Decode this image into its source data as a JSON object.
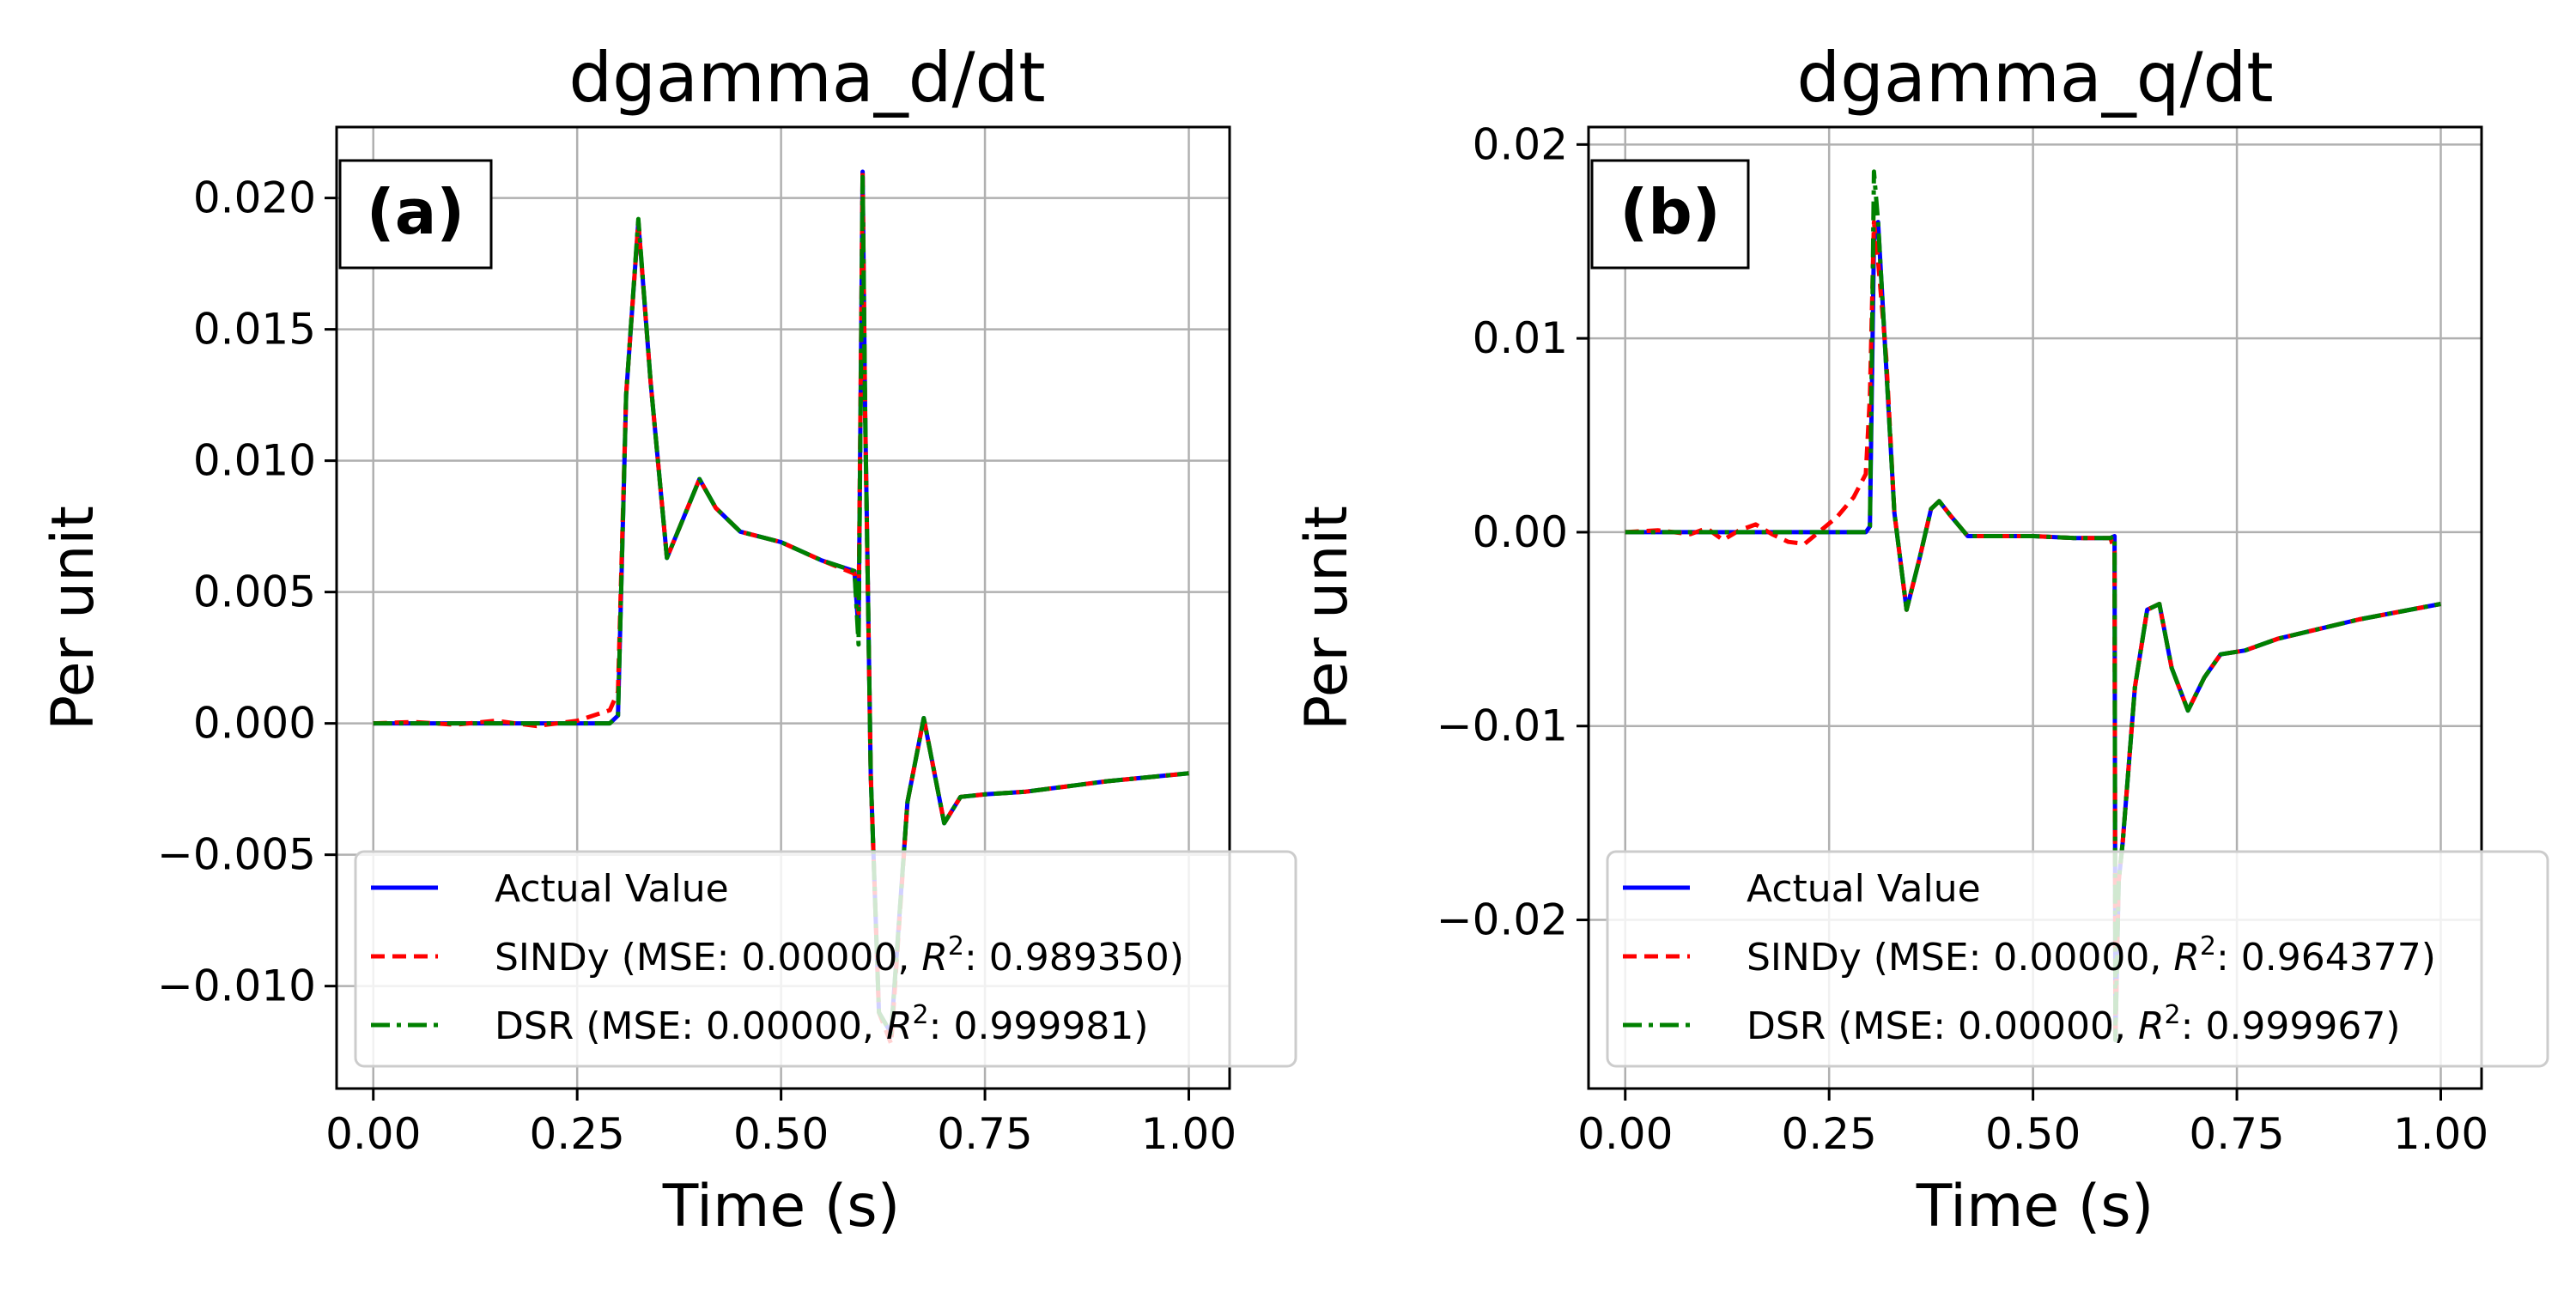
{
  "colors": {
    "actual": "#0000ff",
    "sindy": "#ff0000",
    "dsr": "#008000",
    "grid": "#b0b0b0",
    "axes": "#000000",
    "legend_border": "#cccccc"
  },
  "chart_data": [
    {
      "type": "line",
      "title": "dgamma_d/dt",
      "xlabel": "Time (s)",
      "ylabel": "Per unit",
      "panel_label": "(a)",
      "xlim": [
        -0.045,
        1.05
      ],
      "ylim": [
        -0.0139,
        0.0227
      ],
      "xticks": [
        0.0,
        0.25,
        0.5,
        0.75,
        1.0
      ],
      "xtick_labels": [
        "0.00",
        "0.25",
        "0.50",
        "0.75",
        "1.00"
      ],
      "yticks": [
        -0.01,
        -0.005,
        0.0,
        0.005,
        0.01,
        0.015,
        0.02
      ],
      "ytick_labels": [
        "−0.010",
        "−0.005",
        "0.000",
        "0.005",
        "0.010",
        "0.015",
        "0.020"
      ],
      "grid": true,
      "legend_position": "lower-right",
      "legend": [
        {
          "key": "actual",
          "label": "Actual Value",
          "style": "solid"
        },
        {
          "key": "sindy",
          "prefix": "SINDy (MSE: 0.00000, ",
          "var": "R",
          "sup": "2",
          "suffix": ": 0.989350)",
          "style": "dashed"
        },
        {
          "key": "dsr",
          "prefix": "DSR (MSE: 0.00000, ",
          "var": "R",
          "sup": "2",
          "suffix": ": 0.999981)",
          "style": "dashdot"
        }
      ],
      "series": [
        {
          "name": "Actual Value",
          "key": "actual",
          "x": [
            0,
            0.29,
            0.3,
            0.31,
            0.325,
            0.34,
            0.36,
            0.38,
            0.4,
            0.42,
            0.45,
            0.5,
            0.55,
            0.59,
            0.595,
            0.6,
            0.603,
            0.61,
            0.62,
            0.635,
            0.655,
            0.675,
            0.7,
            0.72,
            0.75,
            0.8,
            0.9,
            1.0
          ],
          "y": [
            0,
            0,
            0.0003,
            0.0125,
            0.0191,
            0.013,
            0.0063,
            0.0078,
            0.0093,
            0.0082,
            0.0073,
            0.0069,
            0.0062,
            0.0058,
            0.0035,
            0.021,
            0.012,
            -0.002,
            -0.011,
            -0.0118,
            -0.003,
            0.0002,
            -0.0038,
            -0.0028,
            -0.0027,
            -0.0026,
            -0.0022,
            -0.0019
          ]
        },
        {
          "name": "SINDy",
          "key": "sindy",
          "x": [
            0,
            0.05,
            0.1,
            0.15,
            0.2,
            0.25,
            0.29,
            0.3,
            0.31,
            0.325,
            0.34,
            0.36,
            0.38,
            0.4,
            0.42,
            0.45,
            0.5,
            0.55,
            0.59,
            0.595,
            0.6,
            0.603,
            0.61,
            0.62,
            0.635,
            0.655,
            0.675,
            0.7,
            0.72,
            0.75,
            0.8,
            0.9,
            1.0
          ],
          "y": [
            0,
            5e-05,
            -5e-05,
            0.0001,
            -0.0001,
            0.0001,
            0.0005,
            0.0012,
            0.0125,
            0.0191,
            0.013,
            0.0063,
            0.0078,
            0.0093,
            0.0082,
            0.0073,
            0.0069,
            0.0062,
            0.0057,
            0.0042,
            0.021,
            0.0118,
            -0.002,
            -0.011,
            -0.0122,
            -0.003,
            0.0002,
            -0.0038,
            -0.0028,
            -0.0027,
            -0.0026,
            -0.0022,
            -0.0019
          ]
        },
        {
          "name": "DSR",
          "key": "dsr",
          "x": [
            0,
            0.29,
            0.3,
            0.31,
            0.325,
            0.34,
            0.36,
            0.38,
            0.4,
            0.42,
            0.45,
            0.5,
            0.55,
            0.59,
            0.595,
            0.6,
            0.603,
            0.61,
            0.62,
            0.635,
            0.655,
            0.675,
            0.7,
            0.72,
            0.75,
            0.8,
            0.9,
            1.0
          ],
          "y": [
            0,
            0,
            0.0003,
            0.0125,
            0.0192,
            0.013,
            0.0063,
            0.0078,
            0.0093,
            0.0082,
            0.0073,
            0.0069,
            0.0062,
            0.0058,
            0.003,
            0.0208,
            0.012,
            -0.002,
            -0.011,
            -0.0118,
            -0.003,
            0.0002,
            -0.0038,
            -0.0028,
            -0.0027,
            -0.0026,
            -0.0022,
            -0.0019
          ]
        }
      ]
    },
    {
      "type": "line",
      "title": "dgamma_q/dt",
      "xlabel": "Time (s)",
      "ylabel": "Per unit",
      "panel_label": "(b)",
      "xlim": [
        -0.045,
        1.05
      ],
      "ylim": [
        -0.0287,
        0.0209
      ],
      "xticks": [
        0.0,
        0.25,
        0.5,
        0.75,
        1.0
      ],
      "xtick_labels": [
        "0.00",
        "0.25",
        "0.50",
        "0.75",
        "1.00"
      ],
      "yticks": [
        -0.02,
        -0.01,
        0.0,
        0.01,
        0.02
      ],
      "ytick_labels": [
        "−0.02",
        "−0.01",
        "0.00",
        "0.01",
        "0.02"
      ],
      "grid": true,
      "legend_position": "lower-right",
      "legend": [
        {
          "key": "actual",
          "label": "Actual Value",
          "style": "solid"
        },
        {
          "key": "sindy",
          "prefix": "SINDy (MSE: 0.00000, ",
          "var": "R",
          "sup": "2",
          "suffix": ": 0.964377)",
          "style": "dashed"
        },
        {
          "key": "dsr",
          "prefix": "DSR (MSE: 0.00000, ",
          "var": "R",
          "sup": "2",
          "suffix": ": 0.999967)",
          "style": "dashdot"
        }
      ],
      "series": [
        {
          "name": "Actual Value",
          "key": "actual",
          "x": [
            0,
            0.295,
            0.3,
            0.305,
            0.31,
            0.32,
            0.33,
            0.345,
            0.36,
            0.375,
            0.385,
            0.4,
            0.42,
            0.45,
            0.5,
            0.55,
            0.595,
            0.6,
            0.601,
            0.605,
            0.61,
            0.625,
            0.64,
            0.655,
            0.67,
            0.69,
            0.71,
            0.73,
            0.76,
            0.8,
            0.85,
            0.9,
            0.95,
            1.0
          ],
          "y": [
            0,
            0,
            0.0003,
            0.015,
            0.016,
            0.0085,
            0.001,
            -0.004,
            -0.0015,
            0.0012,
            0.0016,
            0.0008,
            -0.0002,
            -0.0002,
            -0.0002,
            -0.0003,
            -0.0003,
            -0.0002,
            -0.0262,
            -0.018,
            -0.016,
            -0.008,
            -0.004,
            -0.0037,
            -0.007,
            -0.0092,
            -0.0075,
            -0.0063,
            -0.0061,
            -0.0055,
            -0.005,
            -0.0045,
            -0.0041,
            -0.0037
          ]
        },
        {
          "name": "SINDy",
          "key": "sindy",
          "x": [
            0,
            0.04,
            0.08,
            0.1,
            0.12,
            0.14,
            0.16,
            0.18,
            0.2,
            0.22,
            0.24,
            0.26,
            0.28,
            0.295,
            0.3,
            0.305,
            0.31,
            0.32,
            0.33,
            0.345,
            0.36,
            0.375,
            0.385,
            0.4,
            0.42,
            0.45,
            0.5,
            0.55,
            0.595,
            0.6,
            0.601,
            0.605,
            0.61,
            0.625,
            0.64,
            0.655,
            0.67,
            0.69,
            0.71,
            0.73,
            0.76,
            0.8,
            0.85,
            0.9,
            0.95,
            1.0
          ],
          "y": [
            0,
            0.0001,
            -0.0001,
            0.0002,
            -0.0004,
            0.0001,
            0.0004,
            -0.0001,
            -0.0005,
            -0.0006,
            0.0001,
            0.0008,
            0.0018,
            0.003,
            0.007,
            0.016,
            0.014,
            0.009,
            0.001,
            -0.004,
            -0.0015,
            0.0012,
            0.0016,
            0.0008,
            -0.0002,
            -0.0002,
            -0.0002,
            -0.0003,
            -0.0003,
            -0.001,
            -0.0262,
            -0.018,
            -0.016,
            -0.008,
            -0.004,
            -0.0037,
            -0.007,
            -0.0092,
            -0.0075,
            -0.0063,
            -0.0061,
            -0.0055,
            -0.005,
            -0.0045,
            -0.0041,
            -0.0037
          ]
        },
        {
          "name": "DSR",
          "key": "dsr",
          "x": [
            0,
            0.295,
            0.3,
            0.305,
            0.31,
            0.32,
            0.33,
            0.345,
            0.36,
            0.375,
            0.385,
            0.4,
            0.42,
            0.45,
            0.5,
            0.55,
            0.595,
            0.6,
            0.601,
            0.605,
            0.61,
            0.625,
            0.64,
            0.655,
            0.67,
            0.69,
            0.71,
            0.73,
            0.76,
            0.8,
            0.85,
            0.9,
            0.95,
            1.0
          ],
          "y": [
            0,
            0,
            0.0003,
            0.0186,
            0.016,
            0.0085,
            0.001,
            -0.004,
            -0.0015,
            0.0012,
            0.0016,
            0.0008,
            -0.0002,
            -0.0002,
            -0.0002,
            -0.0003,
            -0.0003,
            -0.0002,
            -0.0262,
            -0.018,
            -0.016,
            -0.008,
            -0.004,
            -0.0037,
            -0.007,
            -0.0092,
            -0.0075,
            -0.0063,
            -0.0061,
            -0.0055,
            -0.005,
            -0.0045,
            -0.0041,
            -0.0037
          ]
        }
      ]
    }
  ]
}
